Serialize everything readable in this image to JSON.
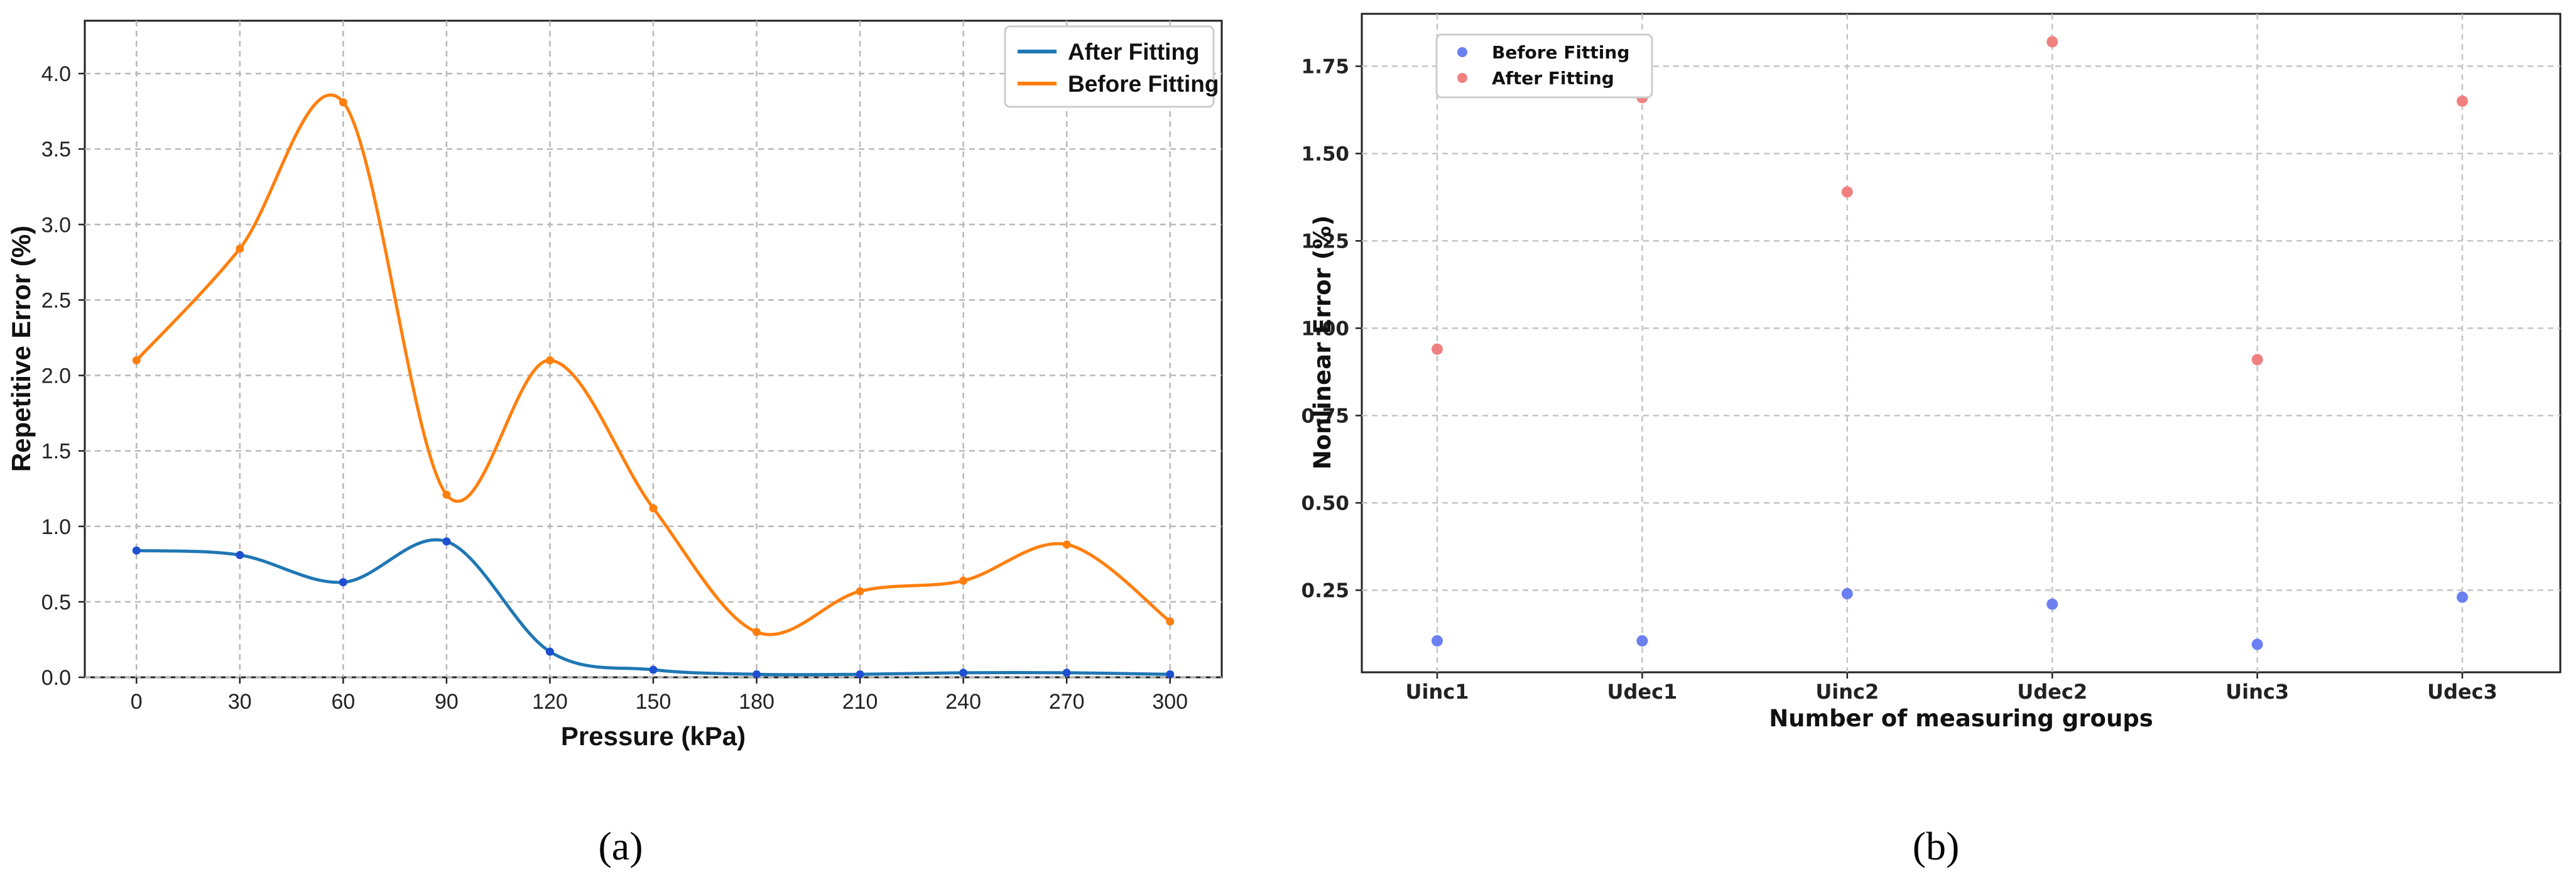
{
  "chart_data": [
    {
      "type": "line",
      "caption": "(a)",
      "xlabel": "Pressure (kPa)",
      "ylabel": "Repetitive Error (%)",
      "x": [
        0,
        30,
        60,
        90,
        120,
        150,
        180,
        210,
        240,
        270,
        300
      ],
      "xticks": [
        "0",
        "30",
        "60",
        "90",
        "120",
        "150",
        "180",
        "210",
        "240",
        "270",
        "300"
      ],
      "yticks": [
        "0.0",
        "0.5",
        "1.0",
        "1.5",
        "2.0",
        "2.5",
        "3.0",
        "3.5",
        "4.0"
      ],
      "xlim": [
        -15,
        315
      ],
      "ylim": [
        0,
        4.35
      ],
      "grid": true,
      "legend_position": "top-right",
      "series": [
        {
          "name": "After Fitting",
          "color": "#1f77b4",
          "marker_color": "#1f4fd1",
          "values": [
            0.84,
            0.81,
            0.63,
            0.9,
            0.17,
            0.05,
            0.02,
            0.02,
            0.03,
            0.03,
            0.02
          ]
        },
        {
          "name": "Before Fitting",
          "color": "#ff7f0e",
          "marker_color": "#ff7f0e",
          "values": [
            2.1,
            2.84,
            3.81,
            1.21,
            2.1,
            1.12,
            0.3,
            0.57,
            0.64,
            0.88,
            0.37
          ]
        }
      ]
    },
    {
      "type": "scatter",
      "caption": "(b)",
      "xlabel": "Number of measuring groups",
      "ylabel": "Nonlinear Error (%)",
      "categories": [
        "Uinc1",
        "Udec1",
        "Uinc2",
        "Udec2",
        "Uinc3",
        "Udec3"
      ],
      "yticks": [
        "0.25",
        "0.50",
        "0.75",
        "1.00",
        "1.25",
        "1.50",
        "1.75"
      ],
      "ylim": [
        0.015,
        1.9
      ],
      "grid": true,
      "legend_position": "top-left",
      "series": [
        {
          "name": "Before Fitting",
          "color": "#6b7ff0",
          "values": [
            0.105,
            0.105,
            0.24,
            0.21,
            0.095,
            0.23
          ]
        },
        {
          "name": "After Fitting",
          "color": "#f08080",
          "values": [
            0.94,
            1.66,
            1.39,
            1.82,
            0.91,
            1.65
          ]
        }
      ]
    }
  ]
}
